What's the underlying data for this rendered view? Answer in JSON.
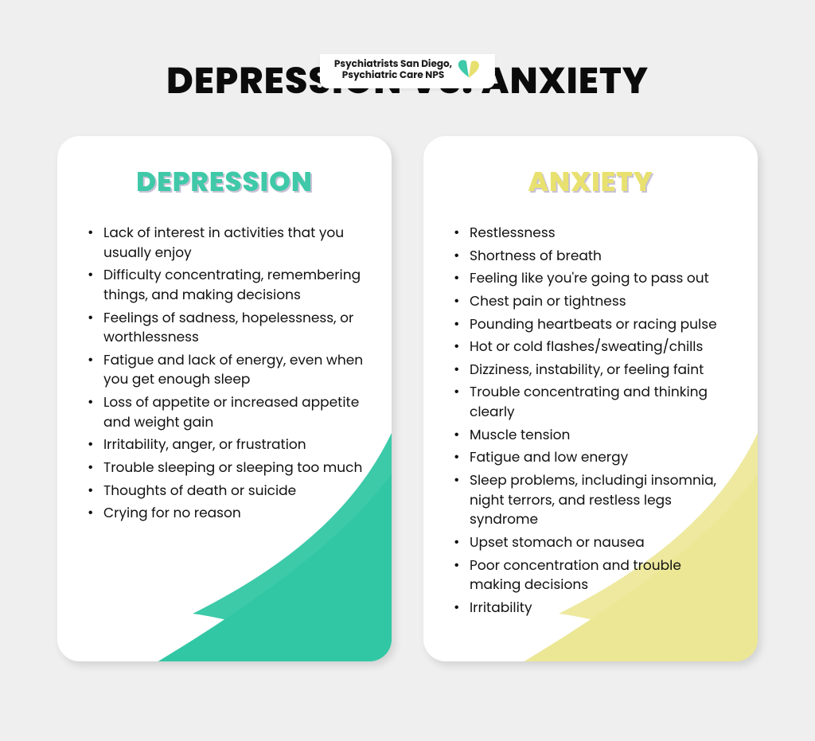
{
  "brand": {
    "line1": "Psychiatrists San Diego,",
    "line2": "Psychiatric Care NPS",
    "heart_back_color": "#e7e06f",
    "heart_front_color": "#3fc9a8"
  },
  "title": "DEPRESSION VS. ANXIETY",
  "title_fontsize": 46,
  "background_color": "#efefef",
  "card_bg": "#ffffff",
  "card_radius": 28,
  "depression": {
    "heading": "DEPRESSION",
    "heading_color": "#3fc9a8",
    "heading_shadow": "#c9c2d6",
    "swoosh_color": "#32c7a4",
    "items": [
      "Lack of interest in activities that you usually enjoy",
      "Difficulty concentrating, remembering things, and making decisions",
      "Feelings of sadness, hopelessness, or worthlessness",
      "Fatigue and lack of energy, even when you get enough sleep",
      "Loss of appetite or increased appetite and weight gain",
      "Irritability, anger, or frustration",
      "Trouble sleeping or sleeping too much",
      "Thoughts of death or suicide",
      "Crying for no reason"
    ]
  },
  "anxiety": {
    "heading": "ANXIETY",
    "heading_color": "#e8e170",
    "heading_shadow": "#c9c2d6",
    "swoosh_color": "#ece795",
    "items": [
      "Restlessness",
      "Shortness of breath",
      "Feeling like you're going to pass out",
      "Chest pain or tightness",
      "Pounding heartbeats or racing pulse",
      "Hot or cold flashes/sweating/chills",
      "Dizziness, instability, or feeling faint",
      "Trouble concentrating and thinking clearly",
      "Muscle tension",
      "Fatigue and low energy",
      "Sleep problems, includingi insomnia, night terrors, and restless legs syndrome",
      "Upset stomach or nausea",
      "Poor concentration and trouble making decisions",
      "Irritability"
    ]
  },
  "bullet_fontsize": 17,
  "heading_fontsize": 34
}
